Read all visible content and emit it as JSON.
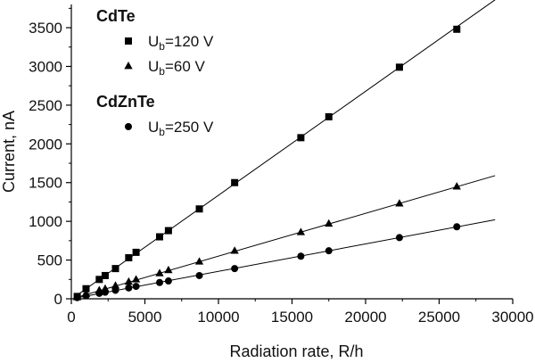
{
  "chart_data": {
    "type": "scatter",
    "xlabel": "Radiation rate, R/h",
    "ylabel": "Current, nA",
    "xlim": [
      0,
      30000
    ],
    "ylim": [
      0,
      3800
    ],
    "xticks": [
      "0",
      "5000",
      "10000",
      "15000",
      "20000",
      "25000",
      "30000"
    ],
    "yticks": [
      "0",
      "500",
      "1000",
      "1500",
      "2000",
      "2500",
      "3000",
      "3500"
    ],
    "xtick_values": [
      0,
      5000,
      10000,
      15000,
      20000,
      25000,
      30000
    ],
    "ytick_values": [
      0,
      500,
      1000,
      1500,
      2000,
      2500,
      3000,
      3500
    ],
    "legend_groups": [
      {
        "title": "CdTe",
        "entries": [
          {
            "series": 0,
            "label_main": "U",
            "label_sub": "b",
            "label_rest": "=120 V"
          },
          {
            "series": 1,
            "label_main": "U",
            "label_sub": "b",
            "label_rest": "=60 V"
          }
        ]
      },
      {
        "title": "CdZnTe",
        "entries": [
          {
            "series": 2,
            "label_main": "U",
            "label_sub": "b",
            "label_rest": "=250 V"
          }
        ]
      }
    ],
    "series": [
      {
        "marker": "square",
        "fit": {
          "x": [
            300,
            28800
          ],
          "y": [
            35,
            3860
          ]
        },
        "points": [
          [
            400,
            30
          ],
          [
            1000,
            130
          ],
          [
            1900,
            250
          ],
          [
            2300,
            300
          ],
          [
            3000,
            390
          ],
          [
            3900,
            530
          ],
          [
            4400,
            600
          ],
          [
            6000,
            800
          ],
          [
            6600,
            880
          ],
          [
            8700,
            1160
          ],
          [
            11100,
            1500
          ],
          [
            15600,
            2080
          ],
          [
            17500,
            2350
          ],
          [
            22300,
            2990
          ],
          [
            26200,
            3480
          ]
        ]
      },
      {
        "marker": "triangle",
        "fit": {
          "x": [
            300,
            28800
          ],
          "y": [
            15,
            1590
          ]
        },
        "points": [
          [
            400,
            20
          ],
          [
            1000,
            60
          ],
          [
            1900,
            110
          ],
          [
            2300,
            130
          ],
          [
            3000,
            170
          ],
          [
            3900,
            220
          ],
          [
            4400,
            250
          ],
          [
            6000,
            330
          ],
          [
            6600,
            370
          ],
          [
            8700,
            480
          ],
          [
            11100,
            620
          ],
          [
            15600,
            860
          ],
          [
            17500,
            970
          ],
          [
            22300,
            1230
          ],
          [
            26200,
            1450
          ]
        ]
      },
      {
        "marker": "circle",
        "fit": {
          "x": [
            300,
            28800
          ],
          "y": [
            10,
            1020
          ]
        },
        "points": [
          [
            400,
            15
          ],
          [
            1000,
            40
          ],
          [
            1900,
            70
          ],
          [
            2300,
            85
          ],
          [
            3000,
            110
          ],
          [
            3900,
            140
          ],
          [
            4400,
            160
          ],
          [
            6000,
            210
          ],
          [
            6600,
            230
          ],
          [
            8700,
            300
          ],
          [
            11100,
            390
          ],
          [
            15600,
            550
          ],
          [
            17500,
            620
          ],
          [
            22300,
            790
          ],
          [
            26200,
            930
          ]
        ]
      }
    ]
  }
}
